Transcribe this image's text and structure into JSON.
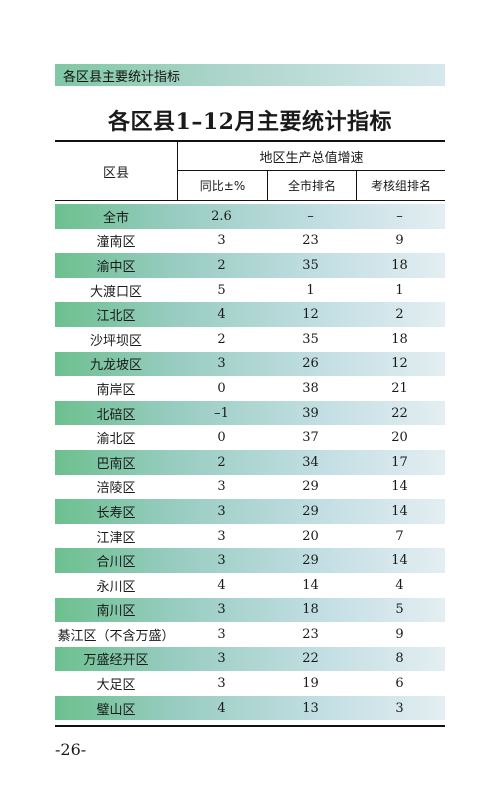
{
  "section_label": "各区县主要统计指标",
  "title": "各区县1–12月主要统计指标",
  "headers": {
    "region": "区县",
    "group": "地区生产总值增速",
    "yoy": "同比±%",
    "city_rank": "全市排名",
    "group_rank": "考核组排名"
  },
  "rows": [
    {
      "name": "全市",
      "yoy": "2.6",
      "city_rank": "–",
      "group_rank": "–",
      "shaded": true
    },
    {
      "name": "潼南区",
      "yoy": "3",
      "city_rank": "23",
      "group_rank": "9",
      "shaded": false
    },
    {
      "name": "渝中区",
      "yoy": "2",
      "city_rank": "35",
      "group_rank": "18",
      "shaded": true
    },
    {
      "name": "大渡口区",
      "yoy": "5",
      "city_rank": "1",
      "group_rank": "1",
      "shaded": false
    },
    {
      "name": "江北区",
      "yoy": "4",
      "city_rank": "12",
      "group_rank": "2",
      "shaded": true
    },
    {
      "name": "沙坪坝区",
      "yoy": "2",
      "city_rank": "35",
      "group_rank": "18",
      "shaded": false
    },
    {
      "name": "九龙坡区",
      "yoy": "3",
      "city_rank": "26",
      "group_rank": "12",
      "shaded": true
    },
    {
      "name": "南岸区",
      "yoy": "0",
      "city_rank": "38",
      "group_rank": "21",
      "shaded": false
    },
    {
      "name": "北碚区",
      "yoy": "–1",
      "city_rank": "39",
      "group_rank": "22",
      "shaded": true
    },
    {
      "name": "渝北区",
      "yoy": "0",
      "city_rank": "37",
      "group_rank": "20",
      "shaded": false
    },
    {
      "name": "巴南区",
      "yoy": "2",
      "city_rank": "34",
      "group_rank": "17",
      "shaded": true
    },
    {
      "name": "涪陵区",
      "yoy": "3",
      "city_rank": "29",
      "group_rank": "14",
      "shaded": false
    },
    {
      "name": "长寿区",
      "yoy": "3",
      "city_rank": "29",
      "group_rank": "14",
      "shaded": true
    },
    {
      "name": "江津区",
      "yoy": "3",
      "city_rank": "20",
      "group_rank": "7",
      "shaded": false
    },
    {
      "name": "合川区",
      "yoy": "3",
      "city_rank": "29",
      "group_rank": "14",
      "shaded": true
    },
    {
      "name": "永川区",
      "yoy": "4",
      "city_rank": "14",
      "group_rank": "4",
      "shaded": false
    },
    {
      "name": "南川区",
      "yoy": "3",
      "city_rank": "18",
      "group_rank": "5",
      "shaded": true
    },
    {
      "name": "綦江区（不含万盛）",
      "yoy": "3",
      "city_rank": "23",
      "group_rank": "9",
      "shaded": false
    },
    {
      "name": "万盛经开区",
      "yoy": "3",
      "city_rank": "22",
      "group_rank": "8",
      "shaded": true
    },
    {
      "name": "大足区",
      "yoy": "3",
      "city_rank": "19",
      "group_rank": "6",
      "shaded": false
    },
    {
      "name": "璧山区",
      "yoy": "4",
      "city_rank": "13",
      "group_rank": "3",
      "shaded": true
    }
  ],
  "page_number": "-26-"
}
